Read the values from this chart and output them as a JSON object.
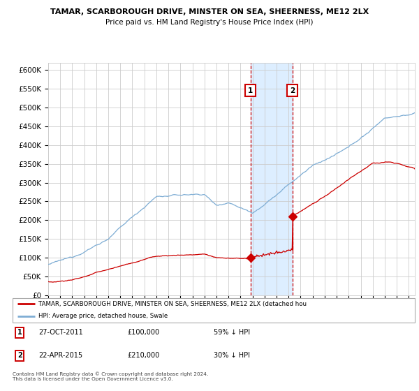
{
  "title": "TAMAR, SCARBOROUGH DRIVE, MINSTER ON SEA, SHEERNESS, ME12 2LX",
  "subtitle": "Price paid vs. HM Land Registry's House Price Index (HPI)",
  "legend_red": "TAMAR, SCARBOROUGH DRIVE, MINSTER ON SEA, SHEERNESS, ME12 2LX (detached hou",
  "legend_blue": "HPI: Average price, detached house, Swale",
  "sale1_date": "27-OCT-2011",
  "sale1_price": 100000,
  "sale1_text": "59% ↓ HPI",
  "sale1_year": 2011.83,
  "sale2_date": "22-APR-2015",
  "sale2_price": 210000,
  "sale2_text": "30% ↓ HPI",
  "sale2_year": 2015.31,
  "footnote": "Contains HM Land Registry data © Crown copyright and database right 2024.\nThis data is licensed under the Open Government Licence v3.0.",
  "red_color": "#cc0000",
  "blue_color": "#7eadd4",
  "bg_color": "#ffffff",
  "grid_color": "#cccccc",
  "highlight_color": "#ddeeff",
  "ylim": [
    0,
    620000
  ],
  "xlim_start": 1995.0,
  "xlim_end": 2025.5,
  "yticks": [
    0,
    50000,
    100000,
    150000,
    200000,
    250000,
    300000,
    350000,
    400000,
    450000,
    500000,
    550000,
    600000
  ]
}
